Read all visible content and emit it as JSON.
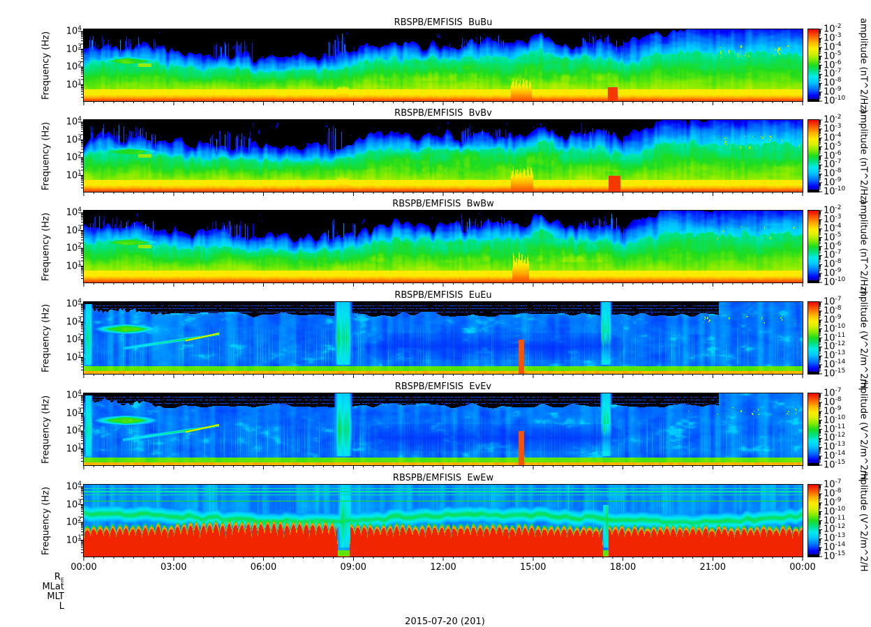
{
  "figure": {
    "date_label": "2015-07-20 (201)",
    "background": "#ffffff"
  },
  "colormap": {
    "black_threshold": 0.02,
    "stops": [
      [
        0.0,
        10,
        10,
        130
      ],
      [
        0.07,
        0,
        0,
        255
      ],
      [
        0.16,
        0,
        110,
        255
      ],
      [
        0.26,
        0,
        200,
        255
      ],
      [
        0.34,
        0,
        235,
        235
      ],
      [
        0.42,
        0,
        225,
        130
      ],
      [
        0.5,
        30,
        220,
        30
      ],
      [
        0.58,
        130,
        235,
        0
      ],
      [
        0.66,
        215,
        240,
        0
      ],
      [
        0.74,
        255,
        235,
        0
      ],
      [
        0.82,
        255,
        180,
        0
      ],
      [
        0.9,
        255,
        100,
        0
      ],
      [
        1.0,
        235,
        10,
        0
      ]
    ]
  },
  "chart_data": {
    "type": "heatmap",
    "description": "Six stacked RBSP-B EMFISIS dynamic power spectrograms (magnetic field BuBu, BvBv, BwBw and electric field EuEu, EvEv, EwEw) versus time (24 h) and frequency (log scale ~2 Hz to 10 kHz) for 2015-07-20, each with its own rainbow colorbar.",
    "x": {
      "label": "",
      "date_label": "2015-07-20 (201)",
      "range_hours": [
        0,
        24
      ],
      "ticks": [
        "00:00",
        "03:00",
        "06:00",
        "09:00",
        "12:00",
        "15:00",
        "18:00",
        "21:00",
        "00:00"
      ],
      "minor_tick_minutes": 20
    },
    "y": {
      "label": "Frequency (Hz)",
      "scale": "log",
      "range_log10_hz": [
        0.08,
        4.12
      ],
      "tick_exponents": [
        4,
        3,
        2,
        1
      ]
    },
    "ephemeris_rows": [
      {
        "label": "R",
        "sub": "E"
      },
      {
        "label": "MLat"
      },
      {
        "label": "MLT"
      },
      {
        "label": "L"
      }
    ],
    "panels": [
      {
        "id": "BuBu",
        "title": "RBSPB/EMFISIS  BuBu",
        "field": "B",
        "seed": 11,
        "colorbar": {
          "label": "amplitude (nT^2/Hz)",
          "top_exp": -2,
          "bottom_exp": -10,
          "tick_exponents": [
            -2,
            -3,
            -4,
            -5,
            -6,
            -7,
            -8,
            -9,
            -10
          ]
        },
        "features": [
          {
            "kind": "green-blob",
            "t": [
              0.2,
              2.8
            ],
            "u": [
              2.0,
              2.65
            ]
          },
          {
            "kind": "green-dash",
            "t": [
              1.8,
              2.25
            ],
            "u": [
              2.02,
              2.2
            ]
          },
          {
            "kind": "blue-streaks",
            "t": [
              0.1,
              2.4
            ],
            "u": [
              2.5,
              3.95
            ]
          },
          {
            "kind": "blue-streaks",
            "t": [
              4.2,
              5.7
            ],
            "u": [
              2.5,
              3.7
            ]
          },
          {
            "kind": "blue-streaks",
            "t": [
              8.1,
              9.05
            ],
            "u": [
              2.3,
              4.12
            ]
          },
          {
            "kind": "blue-streaks",
            "t": [
              12.6,
              14.2
            ],
            "u": [
              2.7,
              4.0
            ]
          },
          {
            "kind": "blue-streaks",
            "t": [
              16.6,
              17.8
            ],
            "u": [
              2.7,
              4.05
            ]
          },
          {
            "kind": "orange-column",
            "t": [
              8.45,
              8.85
            ],
            "u": [
              0.08,
              0.95
            ]
          },
          {
            "kind": "flame",
            "t": [
              14.25,
              14.95
            ],
            "u": [
              0.08,
              1.55
            ]
          },
          {
            "kind": "red-blob",
            "t": [
              17.45,
              17.85
            ],
            "u": [
              0.08,
              0.65
            ]
          },
          {
            "kind": "yellow-flecks",
            "t": [
              21.0,
              24.0
            ],
            "u": [
              2.5,
              3.2
            ]
          }
        ]
      },
      {
        "id": "BvBv",
        "title": "RBSPB/EMFISIS  BvBv",
        "field": "B",
        "seed": 23,
        "colorbar": {
          "label": "amplitude (nT^2/Hz)",
          "top_exp": -2,
          "bottom_exp": -10,
          "tick_exponents": [
            -2,
            -3,
            -4,
            -5,
            -6,
            -7,
            -8,
            -9,
            -10
          ]
        },
        "features": [
          {
            "kind": "green-blob",
            "t": [
              0.2,
              2.8
            ],
            "u": [
              2.0,
              2.65
            ]
          },
          {
            "kind": "green-dash",
            "t": [
              1.8,
              2.25
            ],
            "u": [
              2.02,
              2.2
            ]
          },
          {
            "kind": "blue-streaks",
            "t": [
              0.1,
              2.4
            ],
            "u": [
              2.5,
              3.95
            ]
          },
          {
            "kind": "blue-streaks",
            "t": [
              4.2,
              5.7
            ],
            "u": [
              2.5,
              3.7
            ]
          },
          {
            "kind": "blue-streaks",
            "t": [
              8.1,
              9.05
            ],
            "u": [
              2.3,
              4.12
            ]
          },
          {
            "kind": "blue-streaks",
            "t": [
              12.6,
              14.2
            ],
            "u": [
              2.7,
              4.0
            ]
          },
          {
            "kind": "blue-streaks",
            "t": [
              16.6,
              17.8
            ],
            "u": [
              2.7,
              4.05
            ]
          },
          {
            "kind": "orange-column",
            "t": [
              8.45,
              8.85
            ],
            "u": [
              0.08,
              0.95
            ]
          },
          {
            "kind": "flame",
            "t": [
              14.25,
              15.0
            ],
            "u": [
              0.08,
              1.7
            ]
          },
          {
            "kind": "red-blob",
            "t": [
              17.45,
              17.95
            ],
            "u": [
              0.08,
              0.8
            ]
          },
          {
            "kind": "yellow-flecks",
            "t": [
              21.0,
              24.0
            ],
            "u": [
              2.5,
              3.2
            ]
          }
        ]
      },
      {
        "id": "BwBw",
        "title": "RBSPB/EMFISIS  BwBw",
        "field": "B",
        "seed": 37,
        "colorbar": {
          "label": "amplitude (nT^2/Hz)",
          "top_exp": -2,
          "bottom_exp": -10,
          "tick_exponents": [
            -2,
            -3,
            -4,
            -5,
            -6,
            -7,
            -8,
            -9,
            -10
          ]
        },
        "features": [
          {
            "kind": "green-blob",
            "t": [
              0.2,
              2.8
            ],
            "u": [
              2.0,
              2.65
            ]
          },
          {
            "kind": "green-dash",
            "t": [
              1.8,
              2.25
            ],
            "u": [
              2.02,
              2.2
            ]
          },
          {
            "kind": "blue-streaks",
            "t": [
              0.1,
              2.4
            ],
            "u": [
              2.5,
              3.95
            ]
          },
          {
            "kind": "blue-streaks",
            "t": [
              4.2,
              5.7
            ],
            "u": [
              2.5,
              3.7
            ]
          },
          {
            "kind": "blue-streaks",
            "t": [
              8.1,
              9.05
            ],
            "u": [
              2.3,
              4.12
            ]
          },
          {
            "kind": "blue-streaks",
            "t": [
              12.6,
              14.2
            ],
            "u": [
              2.7,
              4.0
            ]
          },
          {
            "kind": "blue-streaks",
            "t": [
              16.6,
              17.8
            ],
            "u": [
              2.7,
              4.05
            ]
          },
          {
            "kind": "orange-column",
            "t": [
              8.45,
              8.85
            ],
            "u": [
              0.08,
              0.8
            ]
          },
          {
            "kind": "flame",
            "t": [
              14.3,
              14.85
            ],
            "u": [
              0.08,
              1.9
            ]
          },
          {
            "kind": "yellow-flecks",
            "t": [
              21.0,
              24.0
            ],
            "u": [
              2.5,
              3.2
            ]
          }
        ]
      },
      {
        "id": "EuEu",
        "title": "RBSPB/EMFISIS  EuEu",
        "field": "E",
        "seed": 53,
        "colorbar": {
          "label": "mplitude (V^2/m^2/H",
          "top_exp": -7,
          "bottom_exp": -15,
          "tick_exponents": [
            -7,
            -8,
            -9,
            -10,
            -11,
            -12,
            -13,
            -14,
            -15
          ]
        },
        "features": [
          {
            "kind": "cyan-column",
            "t": [
              0.0,
              0.3
            ],
            "u": [
              0.5,
              4.0
            ]
          },
          {
            "kind": "green-blob",
            "t": [
              0.1,
              2.7
            ],
            "u": [
              2.25,
              2.95
            ]
          },
          {
            "kind": "wisp",
            "t": [
              1.3,
              4.5
            ],
            "u": [
              1.5,
              2.3
            ]
          },
          {
            "kind": "wisp-core",
            "t": [
              3.4,
              4.5
            ],
            "u": [
              1.95,
              2.35
            ]
          },
          {
            "kind": "cyan-column",
            "t": [
              8.3,
              9.0
            ],
            "u": [
              0.5,
              4.2
            ]
          },
          {
            "kind": "cyan-column",
            "t": [
              17.2,
              17.65
            ],
            "u": [
              0.5,
              4.2
            ]
          },
          {
            "kind": "red-line",
            "t": [
              14.5,
              14.68
            ],
            "u": [
              0.08,
              2.0
            ]
          },
          {
            "kind": "dark-region",
            "t": [
              9.9,
              17.5
            ],
            "u": [
              0.75,
              2.3
            ]
          },
          {
            "kind": "green-band-right",
            "t": [
              18.2,
              24.0
            ],
            "u": [
              2.45,
              3.55
            ]
          },
          {
            "kind": "orange-flecks",
            "t": [
              20.0,
              23.8
            ],
            "u": [
              2.9,
              3.35
            ]
          }
        ]
      },
      {
        "id": "EvEv",
        "title": "RBSPB/EMFISIS  EvEv",
        "field": "E",
        "seed": 67,
        "colorbar": {
          "label": "mplitude (V^2/m^2/H",
          "top_exp": -7,
          "bottom_exp": -15,
          "tick_exponents": [
            -7,
            -8,
            -9,
            -10,
            -11,
            -12,
            -13,
            -14,
            -15
          ]
        },
        "features": [
          {
            "kind": "cyan-column",
            "t": [
              0.0,
              0.3
            ],
            "u": [
              0.5,
              4.0
            ]
          },
          {
            "kind": "green-blob",
            "t": [
              0.1,
              2.7
            ],
            "u": [
              2.25,
              2.95
            ]
          },
          {
            "kind": "wisp",
            "t": [
              1.3,
              4.5
            ],
            "u": [
              1.5,
              2.3
            ]
          },
          {
            "kind": "wisp-core",
            "t": [
              3.4,
              4.5
            ],
            "u": [
              1.95,
              2.35
            ]
          },
          {
            "kind": "cyan-column",
            "t": [
              8.3,
              9.0
            ],
            "u": [
              0.5,
              4.2
            ]
          },
          {
            "kind": "cyan-column",
            "t": [
              17.2,
              17.65
            ],
            "u": [
              0.5,
              4.2
            ]
          },
          {
            "kind": "red-line",
            "t": [
              14.5,
              14.68
            ],
            "u": [
              0.08,
              2.0
            ]
          },
          {
            "kind": "dark-region",
            "t": [
              9.9,
              17.5
            ],
            "u": [
              0.75,
              2.3
            ]
          },
          {
            "kind": "green-band-right",
            "t": [
              18.2,
              24.0
            ],
            "u": [
              2.45,
              3.55
            ]
          },
          {
            "kind": "orange-flecks",
            "t": [
              20.0,
              23.8
            ],
            "u": [
              2.9,
              3.35
            ]
          }
        ]
      },
      {
        "id": "EwEw",
        "title": "RBSPB/EMFISIS  EwEw",
        "field": "Ew",
        "seed": 83,
        "h_lines": [
          3.2,
          3.55,
          3.73,
          3.9
        ],
        "colorbar": {
          "label": "mplitude (V^2/m^2/H",
          "top_exp": -7,
          "bottom_exp": -15,
          "tick_exponents": [
            -7,
            -8,
            -9,
            -10,
            -11,
            -12,
            -13,
            -14,
            -15
          ]
        },
        "features": [
          {
            "kind": "spike-gap",
            "t": [
              8.45,
              8.9
            ]
          },
          {
            "kind": "spike-gap",
            "t": [
              17.3,
              17.52
            ]
          },
          {
            "kind": "cyan-column",
            "t": [
              8.45,
              9.0
            ],
            "u": [
              0.3,
              4.2
            ]
          },
          {
            "kind": "cyan-column",
            "t": [
              17.3,
              17.55
            ],
            "u": [
              0.3,
              3.0
            ]
          }
        ]
      }
    ]
  }
}
